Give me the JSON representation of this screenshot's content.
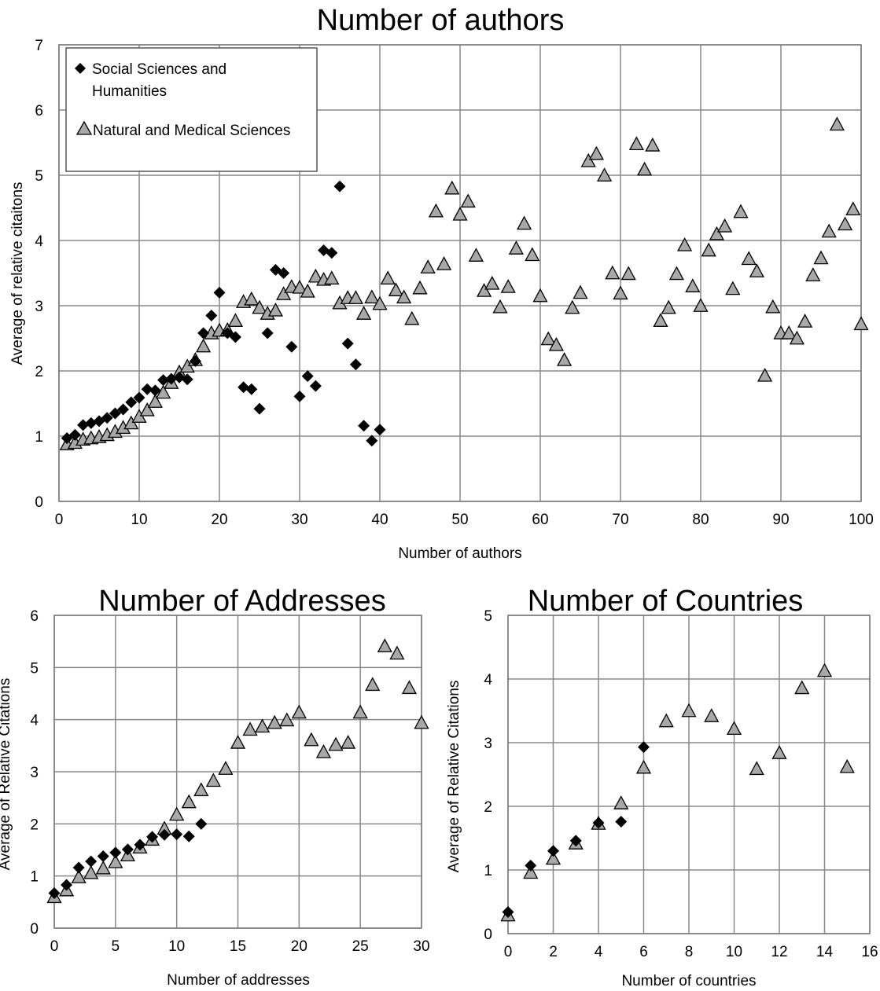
{
  "legend": {
    "series1_line1": "Social Sciences and",
    "series1_line2": "Humanities",
    "series2": "Natural and Medical Sciences"
  },
  "chart_data": [
    {
      "type": "scatter",
      "title": "Number of authors",
      "xlabel": "Number of authors",
      "ylabel": "Average of relative citaitons",
      "xlim": [
        0,
        100
      ],
      "ylim": [
        0,
        7
      ],
      "xticks": [
        0,
        10,
        20,
        30,
        40,
        50,
        60,
        70,
        80,
        90,
        100
      ],
      "yticks": [
        0,
        1,
        2,
        3,
        4,
        5,
        6,
        7
      ],
      "grid": true,
      "legend_position": "top-left",
      "series": [
        {
          "name": "Social Sciences and Humanities",
          "marker": "diamond",
          "points": [
            [
              1,
              0.97
            ],
            [
              2,
              1.02
            ],
            [
              3,
              1.17
            ],
            [
              4,
              1.2
            ],
            [
              5,
              1.23
            ],
            [
              6,
              1.28
            ],
            [
              7,
              1.35
            ],
            [
              8,
              1.41
            ],
            [
              9,
              1.52
            ],
            [
              10,
              1.59
            ],
            [
              11,
              1.72
            ],
            [
              12,
              1.7
            ],
            [
              13,
              1.86
            ],
            [
              14,
              1.88
            ],
            [
              15,
              1.9
            ],
            [
              16,
              1.87
            ],
            [
              17,
              2.15
            ],
            [
              18,
              2.58
            ],
            [
              19,
              2.85
            ],
            [
              20,
              3.2
            ],
            [
              21,
              2.58
            ],
            [
              22,
              2.52
            ],
            [
              23,
              1.75
            ],
            [
              24,
              1.72
            ],
            [
              25,
              1.42
            ],
            [
              26,
              2.58
            ],
            [
              27,
              3.55
            ],
            [
              28,
              3.5
            ],
            [
              29,
              2.37
            ],
            [
              30,
              1.61
            ],
            [
              31,
              1.92
            ],
            [
              32,
              1.77
            ],
            [
              33,
              3.85
            ],
            [
              34,
              3.81
            ],
            [
              35,
              4.83
            ],
            [
              36,
              2.42
            ],
            [
              37,
              2.1
            ],
            [
              38,
              1.16
            ],
            [
              39,
              0.93
            ],
            [
              40,
              1.1
            ]
          ]
        },
        {
          "name": "Natural and Medical Sciences",
          "marker": "triangle",
          "points": [
            [
              1,
              0.88
            ],
            [
              2,
              0.9
            ],
            [
              3,
              0.95
            ],
            [
              4,
              0.97
            ],
            [
              5,
              0.99
            ],
            [
              6,
              1.02
            ],
            [
              7,
              1.07
            ],
            [
              8,
              1.13
            ],
            [
              9,
              1.2
            ],
            [
              10,
              1.3
            ],
            [
              11,
              1.4
            ],
            [
              12,
              1.53
            ],
            [
              13,
              1.67
            ],
            [
              14,
              1.82
            ],
            [
              15,
              1.98
            ],
            [
              16,
              2.07
            ],
            [
              17,
              2.17
            ],
            [
              18,
              2.38
            ],
            [
              19,
              2.58
            ],
            [
              20,
              2.62
            ],
            [
              21,
              2.63
            ],
            [
              22,
              2.77
            ],
            [
              23,
              3.06
            ],
            [
              24,
              3.1
            ],
            [
              25,
              2.97
            ],
            [
              26,
              2.88
            ],
            [
              27,
              2.93
            ],
            [
              28,
              3.18
            ],
            [
              29,
              3.29
            ],
            [
              30,
              3.28
            ],
            [
              31,
              3.22
            ],
            [
              32,
              3.45
            ],
            [
              33,
              3.4
            ],
            [
              34,
              3.42
            ],
            [
              35,
              3.04
            ],
            [
              36,
              3.12
            ],
            [
              37,
              3.12
            ],
            [
              38,
              2.88
            ],
            [
              39,
              3.13
            ],
            [
              40,
              3.03
            ],
            [
              41,
              3.42
            ],
            [
              42,
              3.24
            ],
            [
              43,
              3.13
            ],
            [
              44,
              2.8
            ],
            [
              45,
              3.27
            ],
            [
              46,
              3.59
            ],
            [
              47,
              4.45
            ],
            [
              48,
              3.64
            ],
            [
              49,
              4.8
            ],
            [
              50,
              4.4
            ],
            [
              51,
              4.6
            ],
            [
              52,
              3.77
            ],
            [
              53,
              3.23
            ],
            [
              54,
              3.34
            ],
            [
              55,
              2.98
            ],
            [
              56,
              3.29
            ],
            [
              57,
              3.88
            ],
            [
              58,
              4.26
            ],
            [
              59,
              3.78
            ],
            [
              60,
              3.15
            ],
            [
              61,
              2.49
            ],
            [
              62,
              2.4
            ],
            [
              63,
              2.17
            ],
            [
              64,
              2.97
            ],
            [
              65,
              3.2
            ],
            [
              66,
              5.22
            ],
            [
              67,
              5.33
            ],
            [
              68,
              5.0
            ],
            [
              69,
              3.5
            ],
            [
              70,
              3.19
            ],
            [
              71,
              3.49
            ],
            [
              72,
              5.48
            ],
            [
              73,
              5.09
            ],
            [
              74,
              5.46
            ],
            [
              75,
              2.77
            ],
            [
              76,
              2.97
            ],
            [
              77,
              3.49
            ],
            [
              78,
              3.93
            ],
            [
              79,
              3.3
            ],
            [
              80,
              3.0
            ],
            [
              81,
              3.85
            ],
            [
              82,
              4.1
            ],
            [
              83,
              4.22
            ],
            [
              84,
              3.26
            ],
            [
              85,
              4.44
            ],
            [
              86,
              3.72
            ],
            [
              87,
              3.53
            ],
            [
              88,
              1.93
            ],
            [
              89,
              2.98
            ],
            [
              90,
              2.58
            ],
            [
              91,
              2.58
            ],
            [
              92,
              2.5
            ],
            [
              93,
              2.76
            ],
            [
              94,
              3.47
            ],
            [
              95,
              3.73
            ],
            [
              96,
              4.14
            ],
            [
              97,
              5.78
            ],
            [
              98,
              4.25
            ],
            [
              99,
              4.48
            ],
            [
              100,
              2.72
            ]
          ]
        }
      ]
    },
    {
      "type": "scatter",
      "title": "Number of Addresses",
      "xlabel": "Number of addresses",
      "ylabel": "Average of Relative Citations",
      "xlim": [
        0,
        30
      ],
      "ylim": [
        0,
        6
      ],
      "xticks": [
        0,
        5,
        10,
        15,
        20,
        25,
        30
      ],
      "yticks": [
        0,
        1,
        2,
        3,
        4,
        5,
        6
      ],
      "grid": true,
      "series": [
        {
          "name": "Social Sciences and Humanities",
          "marker": "diamond",
          "points": [
            [
              0,
              0.67
            ],
            [
              1,
              0.83
            ],
            [
              2,
              1.16
            ],
            [
              3,
              1.28
            ],
            [
              4,
              1.38
            ],
            [
              5,
              1.45
            ],
            [
              6,
              1.51
            ],
            [
              7,
              1.6
            ],
            [
              8,
              1.75
            ],
            [
              9,
              1.79
            ],
            [
              10,
              1.8
            ],
            [
              11,
              1.76
            ],
            [
              12,
              2.0
            ]
          ]
        },
        {
          "name": "Natural and Medical Sciences",
          "marker": "triangle",
          "points": [
            [
              0,
              0.6
            ],
            [
              1,
              0.73
            ],
            [
              2,
              0.98
            ],
            [
              3,
              1.06
            ],
            [
              4,
              1.15
            ],
            [
              5,
              1.27
            ],
            [
              6,
              1.4
            ],
            [
              7,
              1.55
            ],
            [
              8,
              1.7
            ],
            [
              9,
              1.91
            ],
            [
              10,
              2.18
            ],
            [
              11,
              2.42
            ],
            [
              12,
              2.65
            ],
            [
              13,
              2.83
            ],
            [
              14,
              3.06
            ],
            [
              15,
              3.56
            ],
            [
              16,
              3.81
            ],
            [
              17,
              3.87
            ],
            [
              18,
              3.94
            ],
            [
              19,
              3.99
            ],
            [
              20,
              4.14
            ],
            [
              21,
              3.61
            ],
            [
              22,
              3.38
            ],
            [
              23,
              3.52
            ],
            [
              24,
              3.56
            ],
            [
              25,
              4.14
            ],
            [
              26,
              4.67
            ],
            [
              27,
              5.41
            ],
            [
              28,
              5.27
            ],
            [
              29,
              4.61
            ],
            [
              30,
              3.94
            ]
          ]
        }
      ]
    },
    {
      "type": "scatter",
      "title": "Number of Countries",
      "xlabel": "Number of countries",
      "ylabel": "Average of Relative Citations",
      "xlim": [
        0,
        16
      ],
      "ylim": [
        0,
        5
      ],
      "xticks": [
        0,
        2,
        4,
        6,
        8,
        10,
        12,
        14,
        16
      ],
      "yticks": [
        0,
        1,
        2,
        3,
        4,
        5
      ],
      "grid": true,
      "series": [
        {
          "name": "Social Sciences and Humanities",
          "marker": "diamond",
          "points": [
            [
              0,
              0.34
            ],
            [
              1,
              1.07
            ],
            [
              2,
              1.3
            ],
            [
              3,
              1.46
            ],
            [
              4,
              1.74
            ],
            [
              5,
              1.76
            ],
            [
              6,
              2.93
            ]
          ]
        },
        {
          "name": "Natural and Medical Sciences",
          "marker": "triangle",
          "points": [
            [
              0,
              0.29
            ],
            [
              1,
              0.96
            ],
            [
              2,
              1.18
            ],
            [
              3,
              1.42
            ],
            [
              4,
              1.73
            ],
            [
              5,
              2.05
            ],
            [
              6,
              2.61
            ],
            [
              7,
              3.34
            ],
            [
              8,
              3.5
            ],
            [
              9,
              3.42
            ],
            [
              10,
              3.22
            ],
            [
              11,
              2.59
            ],
            [
              12,
              2.84
            ],
            [
              13,
              3.86
            ],
            [
              14,
              4.13
            ],
            [
              15,
              2.62
            ]
          ]
        }
      ]
    }
  ]
}
